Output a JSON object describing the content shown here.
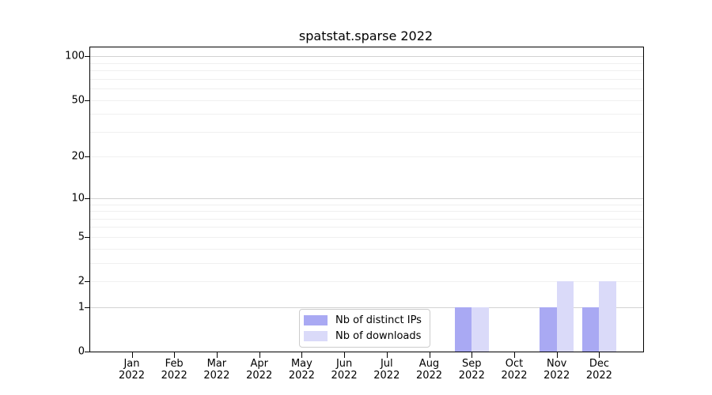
{
  "chart_data": {
    "type": "bar",
    "title": "spatstat.sparse 2022",
    "year": "2022",
    "months": [
      "Jan",
      "Feb",
      "Mar",
      "Apr",
      "May",
      "Jun",
      "Jul",
      "Aug",
      "Sep",
      "Oct",
      "Nov",
      "Dec"
    ],
    "series": [
      {
        "name": "Nb of distinct IPs",
        "color": "#a9a9f3",
        "values": [
          0,
          0,
          0,
          0,
          0,
          0,
          0,
          0,
          1,
          0,
          1,
          1
        ]
      },
      {
        "name": "Nb of downloads",
        "color": "#dadaf9",
        "values": [
          0,
          0,
          0,
          0,
          0,
          0,
          0,
          0,
          1,
          0,
          2,
          2
        ]
      }
    ],
    "y_axis": {
      "scale": "log1p",
      "ticks": [
        0,
        1,
        2,
        5,
        10,
        20,
        50,
        100
      ],
      "max": 115,
      "grid_major": [
        1,
        10,
        100
      ],
      "grid_minor": [
        2,
        3,
        4,
        5,
        6,
        7,
        8,
        9,
        20,
        30,
        40,
        50,
        60,
        70,
        80,
        90
      ],
      "grid": "on"
    },
    "x_axis": {
      "tick_labels_two_lines": true
    },
    "legend": {
      "position": "lower center",
      "entries": [
        {
          "label": "Nb of distinct IPs",
          "color": "#a9a9f3"
        },
        {
          "label": "Nb of downloads",
          "color": "#dadaf9"
        }
      ]
    }
  }
}
